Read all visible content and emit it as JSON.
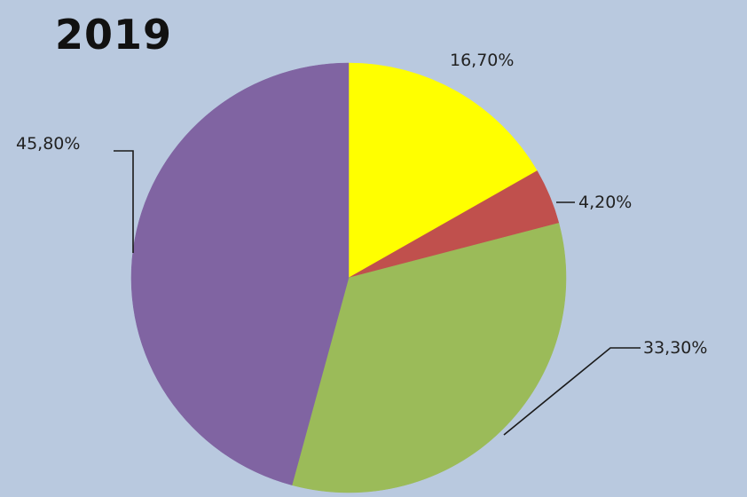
{
  "chart_data": {
    "type": "pie",
    "title": "2019",
    "slices": [
      {
        "label": "16,70%",
        "value": 16.7,
        "color": "#ffff00"
      },
      {
        "label": "4,20%",
        "value": 4.2,
        "color": "#c0504d"
      },
      {
        "label": "33,30%",
        "value": 33.3,
        "color": "#9bbb59"
      },
      {
        "label": "45,80%",
        "value": 45.8,
        "color": "#8064a2"
      }
    ],
    "start_angle": "12 o'clock, clockwise",
    "legend": "none"
  },
  "colors": {
    "background": "#b9c9df"
  }
}
